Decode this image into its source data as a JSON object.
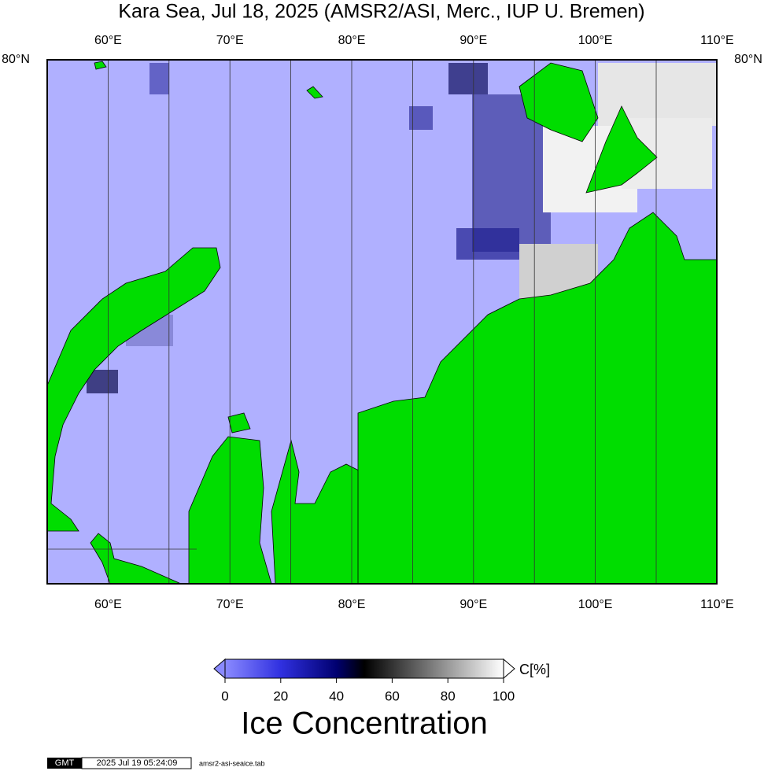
{
  "header": {
    "title": "Kara Sea, Jul 18, 2025 (AMSR2/ASI, Merc., IUP U. Bremen)"
  },
  "map": {
    "lon_labels": [
      "60°E",
      "70°E",
      "80°E",
      "90°E",
      "100°E",
      "110°E"
    ],
    "lat_labels": [
      "80°N"
    ]
  },
  "colorbar": {
    "ticks": [
      "0",
      "20",
      "40",
      "60",
      "80",
      "100"
    ],
    "unit": "C[%]",
    "label": "Ice Concentration"
  },
  "footer": {
    "logo": "GMT",
    "timestamp": "2025 Jul 19 05:24:09",
    "filename": "amsr2-asi-seaice.tab"
  }
}
